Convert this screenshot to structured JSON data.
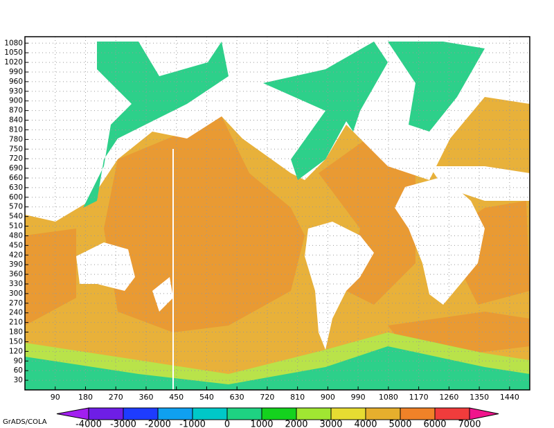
{
  "chart_data": {
    "type": "map",
    "xlim": [
      0,
      1500
    ],
    "ylim": [
      0,
      1100
    ],
    "xticks": [
      90,
      180,
      270,
      360,
      450,
      540,
      630,
      720,
      810,
      900,
      990,
      1080,
      1170,
      1260,
      1350,
      1440
    ],
    "yticks": [
      30,
      60,
      90,
      120,
      150,
      180,
      210,
      240,
      270,
      300,
      330,
      360,
      390,
      420,
      450,
      480,
      510,
      540,
      570,
      600,
      630,
      660,
      690,
      720,
      750,
      780,
      810,
      840,
      870,
      900,
      930,
      960,
      990,
      1020,
      1050,
      1080
    ],
    "grid": true,
    "colorbar": {
      "levels": [
        -4000,
        -3000,
        -2000,
        -1000,
        0,
        1000,
        2000,
        3000,
        4000,
        5000,
        6000,
        7000
      ],
      "colors": [
        "#a21ff0",
        "#6e1ee6",
        "#1e3cff",
        "#0fa0f0",
        "#00c8c8",
        "#1ed282",
        "#14d21e",
        "#a0e632",
        "#e6dc32",
        "#e6af2d",
        "#f08228",
        "#f03c3c",
        "#f0148c"
      ]
    },
    "credit": "GrADS/COLA"
  }
}
